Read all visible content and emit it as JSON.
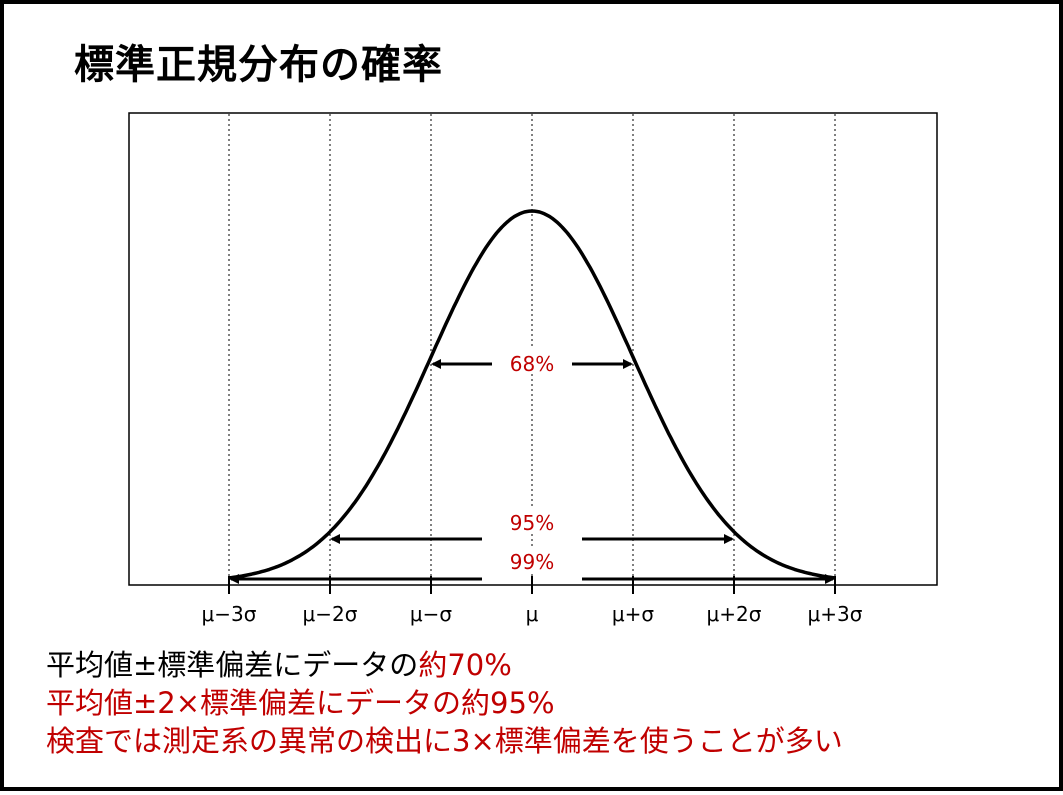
{
  "title": "標準正規分布の確率",
  "chart_data": {
    "type": "line",
    "title": "",
    "xlabel": "",
    "ylabel": "",
    "x_unit": "σ",
    "xlim": [
      -4,
      4
    ],
    "ticks": [
      {
        "x": -3,
        "label": "μ−3σ"
      },
      {
        "x": -2,
        "label": "μ−2σ"
      },
      {
        "x": -1,
        "label": "μ−σ"
      },
      {
        "x": 0,
        "label": "μ"
      },
      {
        "x": 1,
        "label": "μ+σ"
      },
      {
        "x": 2,
        "label": "μ+2σ"
      },
      {
        "x": 3,
        "label": "μ+3σ"
      }
    ],
    "series": [
      {
        "curve": "standard-normal-density",
        "x_range": [
          -3,
          3
        ]
      }
    ],
    "intervals": [
      {
        "from": -1,
        "to": 1,
        "label": "68%"
      },
      {
        "from": -2,
        "to": 2,
        "label": "95%"
      },
      {
        "from": -3,
        "to": 3,
        "label": "99%"
      }
    ],
    "grid": "vertical dotted at ticks",
    "legend": "none"
  },
  "notes": [
    {
      "text": "平均値±標準偏差にデータの",
      "highlight": "約70%"
    },
    {
      "text": "",
      "highlight": "平均値±2×標準偏差にデータの約95%"
    },
    {
      "text": "",
      "highlight": "検査では測定系の異常の検出に3×標準偏差を使うことが多い"
    }
  ],
  "colors": {
    "highlight": "#c00000",
    "text": "#000000",
    "curve": "#000000"
  }
}
